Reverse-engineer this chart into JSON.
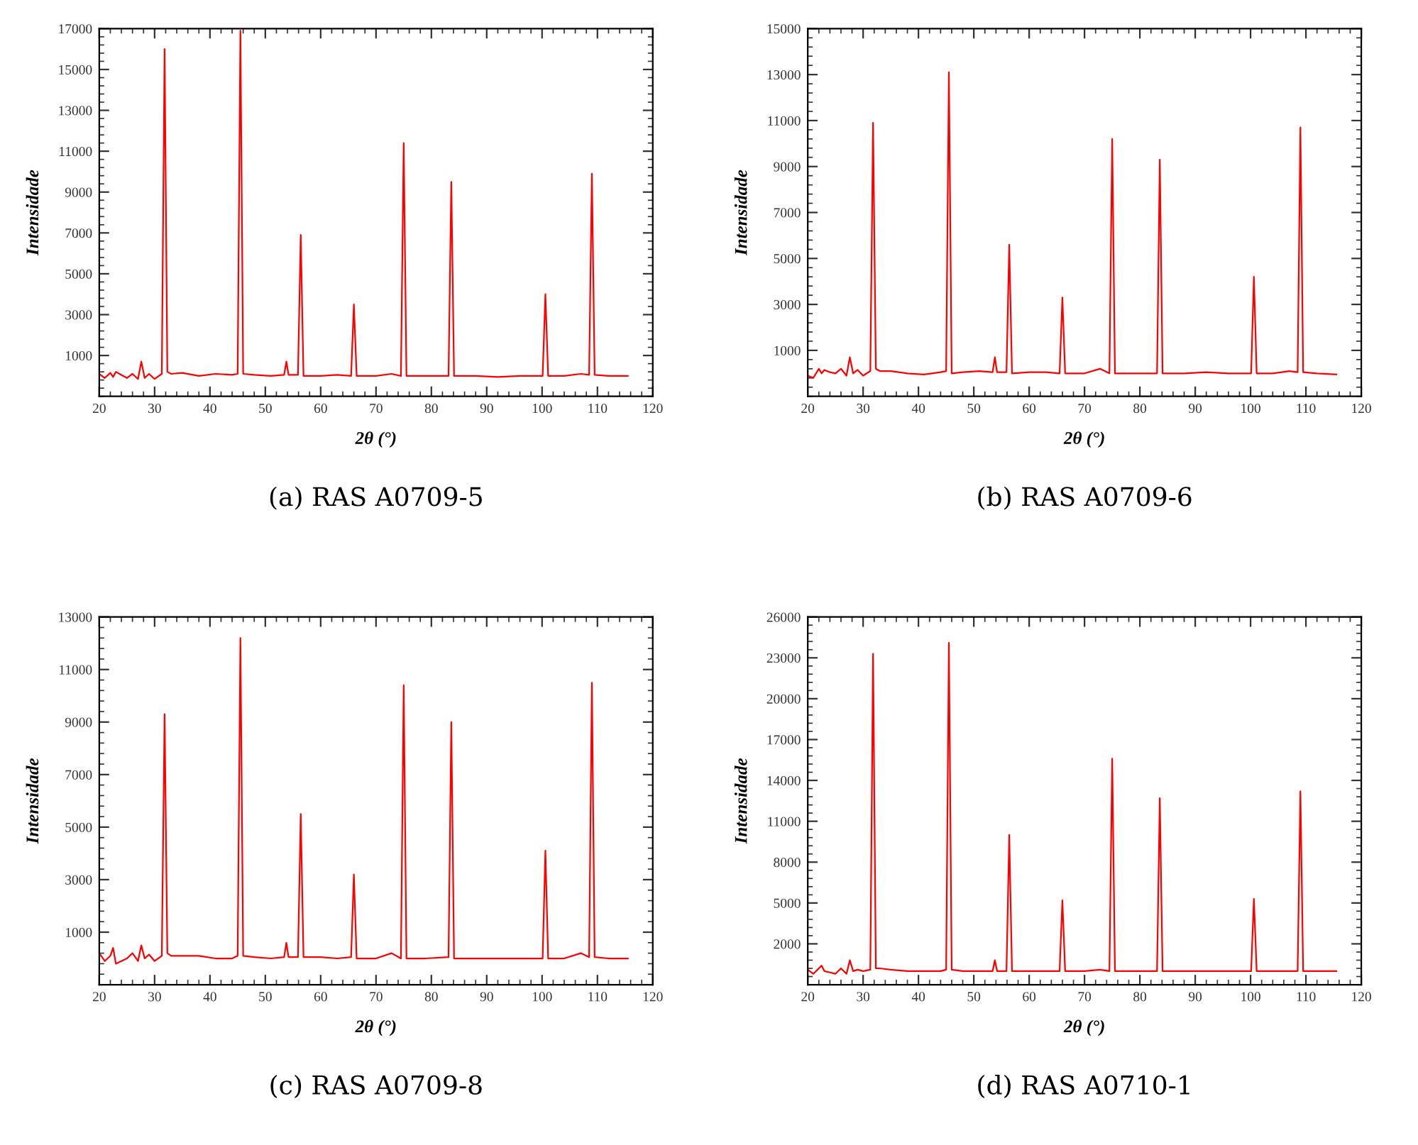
{
  "chart_data": [
    {
      "type": "line",
      "title": "(a) RAS A0709-5",
      "xlabel": "2θ (°)",
      "ylabel": "Intensidade",
      "xlim": [
        20,
        120
      ],
      "ylim": [
        -1000,
        17000
      ],
      "xticks": [
        20,
        30,
        40,
        50,
        60,
        70,
        80,
        90,
        100,
        110,
        120
      ],
      "yticks": [
        1000,
        3000,
        5000,
        7000,
        9000,
        11000,
        13000,
        15000,
        17000
      ],
      "x": [
        20.0,
        21,
        22,
        22.5,
        23,
        24,
        25,
        26,
        27,
        27.6,
        28.2,
        29,
        30,
        31.3,
        31.8,
        32.3,
        33,
        35,
        38,
        41,
        44,
        45.0,
        45.5,
        46.0,
        48,
        51,
        53.4,
        53.8,
        54.2,
        55.9,
        56.4,
        56.9,
        60,
        63,
        65.5,
        66.0,
        66.5,
        70,
        72.8,
        74.5,
        75.0,
        75.5,
        79,
        83.1,
        83.6,
        84.1,
        88,
        92,
        96,
        100.1,
        100.6,
        101.1,
        104,
        107,
        108.5,
        109.0,
        109.5,
        112,
        115.5
      ],
      "series": [
        {
          "color": "#ff0000",
          "values": [
            100,
            -100,
            150,
            -50,
            200,
            50,
            -100,
            100,
            -150,
            700,
            -100,
            100,
            -150,
            100,
            16000,
            200,
            100,
            150,
            0,
            100,
            50,
            100,
            16900,
            100,
            50,
            0,
            50,
            700,
            50,
            50,
            6900,
            0,
            0,
            50,
            0,
            3500,
            0,
            0,
            100,
            0,
            11400,
            0,
            0,
            0,
            9500,
            0,
            0,
            -50,
            0,
            0,
            4000,
            0,
            0,
            100,
            50,
            9900,
            50,
            0,
            0
          ]
        }
      ]
    },
    {
      "type": "line",
      "title": "(b) RAS A0709-6",
      "xlabel": "2θ (°)",
      "ylabel": "Intensidade",
      "xlim": [
        20,
        120
      ],
      "ylim": [
        -1000,
        15000
      ],
      "xticks": [
        20,
        30,
        40,
        50,
        60,
        70,
        80,
        90,
        100,
        110,
        120
      ],
      "yticks": [
        1000,
        3000,
        5000,
        7000,
        9000,
        11000,
        13000,
        15000
      ],
      "x": [
        20.0,
        21,
        22,
        22.5,
        23,
        24,
        25,
        26,
        27,
        27.6,
        28.2,
        29,
        30,
        31.3,
        31.8,
        32.3,
        33,
        35,
        38,
        41,
        44,
        45.0,
        45.5,
        46.0,
        48,
        51,
        53.4,
        53.8,
        54.2,
        55.9,
        56.4,
        56.9,
        60,
        63,
        65.5,
        66.0,
        66.5,
        70,
        72.8,
        74.5,
        75.0,
        75.5,
        79,
        83.1,
        83.6,
        84.1,
        88,
        92,
        96,
        100.1,
        100.6,
        101.1,
        104,
        107,
        108.5,
        109.0,
        109.5,
        112,
        115.5
      ],
      "series": [
        {
          "color": "#ff0000",
          "values": [
            -100,
            -200,
            200,
            0,
            150,
            50,
            0,
            200,
            -100,
            700,
            0,
            150,
            -100,
            100,
            10900,
            200,
            100,
            100,
            0,
            -50,
            50,
            100,
            13100,
            0,
            50,
            100,
            50,
            700,
            50,
            50,
            5600,
            0,
            50,
            50,
            0,
            3300,
            0,
            0,
            200,
            0,
            10200,
            0,
            0,
            0,
            9300,
            0,
            0,
            50,
            0,
            0,
            4200,
            0,
            0,
            100,
            50,
            10700,
            50,
            0,
            -50
          ]
        }
      ]
    },
    {
      "type": "line",
      "title": "(c) RAS A0709-8",
      "xlabel": "2θ (°)",
      "ylabel": "Intensidade",
      "xlim": [
        20,
        120
      ],
      "ylim": [
        -1000,
        13000
      ],
      "xticks": [
        20,
        30,
        40,
        50,
        60,
        70,
        80,
        90,
        100,
        110,
        120
      ],
      "yticks": [
        1000,
        3000,
        5000,
        7000,
        9000,
        11000,
        13000
      ],
      "x": [
        20.0,
        21,
        22,
        22.5,
        23,
        24,
        25,
        26,
        27,
        27.6,
        28.2,
        29,
        30,
        31.3,
        31.8,
        32.3,
        33,
        35,
        38,
        41,
        44,
        45.0,
        45.5,
        46.0,
        48,
        51,
        53.4,
        53.8,
        54.2,
        55.9,
        56.4,
        56.9,
        60,
        63,
        65.5,
        66.0,
        66.5,
        70,
        72.8,
        74.5,
        75.0,
        75.5,
        79,
        83.1,
        83.6,
        84.1,
        88,
        92,
        96,
        100.1,
        100.6,
        101.1,
        104,
        107,
        108.5,
        109.0,
        109.5,
        112,
        115.5
      ],
      "series": [
        {
          "color": "#ff0000",
          "values": [
            200,
            -100,
            100,
            400,
            -200,
            -100,
            0,
            200,
            -100,
            500,
            0,
            150,
            -100,
            100,
            9300,
            200,
            100,
            100,
            100,
            0,
            0,
            100,
            12200,
            100,
            50,
            0,
            50,
            600,
            50,
            50,
            5500,
            50,
            50,
            0,
            50,
            3200,
            0,
            0,
            200,
            0,
            10400,
            0,
            0,
            50,
            9000,
            0,
            0,
            0,
            0,
            0,
            4100,
            0,
            0,
            200,
            50,
            10500,
            50,
            0,
            0
          ]
        }
      ]
    },
    {
      "type": "line",
      "title": "(d) RAS A0710-1",
      "xlabel": "2θ (°)",
      "ylabel": "Intensidade",
      "xlim": [
        20,
        120
      ],
      "ylim": [
        -1000,
        26000
      ],
      "xticks": [
        20,
        30,
        40,
        50,
        60,
        70,
        80,
        90,
        100,
        110,
        120
      ],
      "yticks": [
        2000,
        5000,
        8000,
        11000,
        14000,
        17000,
        20000,
        23000,
        26000
      ],
      "x": [
        20.0,
        21,
        22,
        22.5,
        23,
        24,
        25,
        26,
        27,
        27.6,
        28.2,
        29,
        30,
        31.3,
        31.8,
        32.3,
        33,
        35,
        38,
        41,
        44,
        45.0,
        45.5,
        46.0,
        48,
        51,
        53.4,
        53.8,
        54.2,
        55.9,
        56.4,
        56.9,
        60,
        63,
        65.5,
        66.0,
        66.5,
        70,
        72.8,
        74.5,
        75.0,
        75.5,
        79,
        83.1,
        83.6,
        84.1,
        88,
        92,
        96,
        100.1,
        100.6,
        101.1,
        104,
        107,
        108.5,
        109.0,
        109.5,
        112,
        115.5
      ],
      "series": [
        {
          "color": "#ff0000",
          "values": [
            100,
            -200,
            200,
            400,
            0,
            -100,
            -200,
            200,
            -200,
            800,
            0,
            100,
            0,
            100,
            23300,
            200,
            200,
            100,
            0,
            0,
            0,
            100,
            24100,
            100,
            0,
            0,
            0,
            800,
            0,
            0,
            10000,
            0,
            0,
            0,
            0,
            5200,
            0,
            0,
            100,
            0,
            15600,
            0,
            0,
            0,
            12700,
            0,
            0,
            0,
            0,
            0,
            5300,
            0,
            0,
            0,
            0,
            13200,
            0,
            0,
            0
          ]
        }
      ]
    }
  ]
}
